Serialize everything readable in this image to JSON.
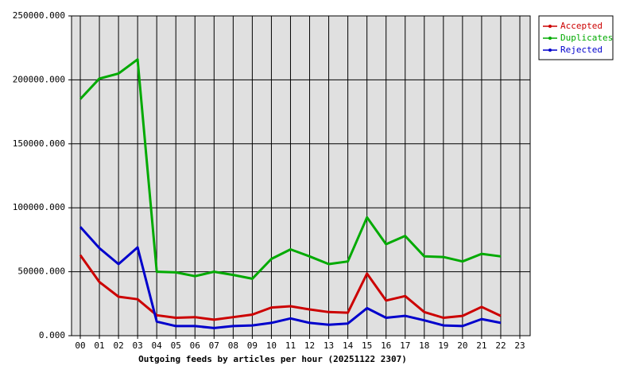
{
  "chart_data": {
    "type": "line",
    "xlabel": "Outgoing feeds by articles per hour (20251122 2307)",
    "categories": [
      "00",
      "01",
      "02",
      "03",
      "04",
      "05",
      "06",
      "07",
      "08",
      "09",
      "10",
      "11",
      "12",
      "13",
      "14",
      "15",
      "16",
      "17",
      "18",
      "19",
      "20",
      "21",
      "22",
      "23"
    ],
    "series": [
      {
        "name": "Accepted",
        "color": "#cc0000",
        "values": [
          63000,
          42000,
          30500,
          28500,
          16000,
          14000,
          14500,
          12500,
          14500,
          16500,
          22000,
          23000,
          20500,
          18500,
          18000,
          48500,
          27500,
          31000,
          18500,
          14000,
          15500,
          22500,
          15500,
          null
        ]
      },
      {
        "name": "Duplicates",
        "color": "#00aa00",
        "values": [
          185000,
          201000,
          205000,
          216000,
          50000,
          49500,
          46500,
          50000,
          47500,
          44500,
          60000,
          67500,
          62000,
          56000,
          58000,
          92500,
          71500,
          78000,
          62000,
          61500,
          58000,
          64000,
          62000,
          null
        ]
      },
      {
        "name": "Rejected",
        "color": "#0000cc",
        "values": [
          85000,
          68500,
          56000,
          69000,
          11000,
          7500,
          7500,
          6000,
          7500,
          8000,
          10000,
          13500,
          10000,
          8500,
          9500,
          21500,
          14000,
          15500,
          12000,
          8000,
          7500,
          13000,
          10000,
          null
        ]
      }
    ],
    "ylim": [
      0,
      250000
    ],
    "yticks": [
      {
        "value": 0,
        "label": "0.000"
      },
      {
        "value": 50000,
        "label": "50000.000"
      },
      {
        "value": 100000,
        "label": "100000.000"
      },
      {
        "value": 150000,
        "label": "150000.000"
      },
      {
        "value": 200000,
        "label": "200000.000"
      },
      {
        "value": 250000,
        "label": "250000.000"
      }
    ],
    "grid": true,
    "legend": "right"
  }
}
